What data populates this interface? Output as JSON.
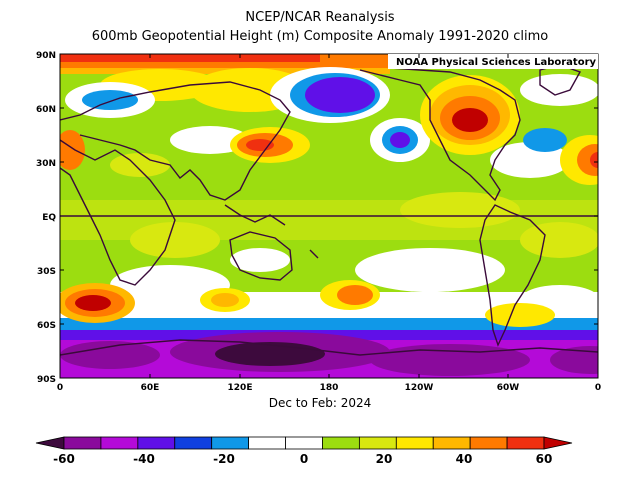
{
  "title_line1": "NCEP/NCAR Reanalysis",
  "title_line2": "600mb Geopotential Height (m) Composite Anomaly 1991-2020 climo",
  "credit": "NOAA Physical Sciences Laboratory",
  "subtitle": "Dec to Feb: 2024",
  "lat_labels": [
    "90N",
    "60N",
    "30N",
    "EQ",
    "30S",
    "60S",
    "90S"
  ],
  "lon_labels": [
    "0",
    "60E",
    "120E",
    "180",
    "120W",
    "60W",
    "0"
  ],
  "colorbar": {
    "colors": [
      "#3d0a3d",
      "#8a0a9c",
      "#b40ad8",
      "#6010e8",
      "#1040e0",
      "#1098e8",
      "#ffffff",
      "#ffffff",
      "#9cdd10",
      "#d8e810",
      "#ffe800",
      "#ffb800",
      "#ff7a00",
      "#f03010",
      "#c00000"
    ],
    "labels": [
      "-60",
      "-40",
      "-20",
      "0",
      "20",
      "40",
      "60"
    ]
  }
}
